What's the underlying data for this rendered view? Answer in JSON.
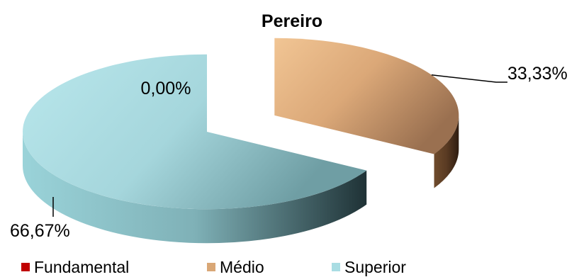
{
  "chart_data": {
    "type": "pie",
    "title": "Pereiro",
    "categories": [
      "Fundamental",
      "Médio",
      "Superior"
    ],
    "values": [
      0.0,
      33.33,
      66.67
    ],
    "data_labels": [
      "0,00%",
      "33,33%",
      "66,67%"
    ],
    "colors": [
      "#c00000",
      "#d9a776",
      "#a9dde3"
    ],
    "legend": "bottom",
    "exploded": [
      "Médio"
    ],
    "style": "3d"
  }
}
